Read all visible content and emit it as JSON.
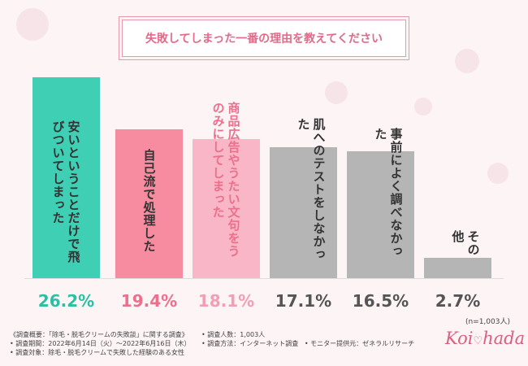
{
  "chart_data": {
    "type": "bar",
    "title": "失敗してしまった一番の理由を教えてください",
    "categories": [
      "安いということだけで飛びついてしまった",
      "自己流で処理した",
      "商品広告やうたい文句をうのみにしてしまった",
      "肌へのテストをしなかった",
      "事前によく調べなかった",
      "その他"
    ],
    "values": [
      26.2,
      19.4,
      18.1,
      17.1,
      16.5,
      2.7
    ],
    "value_labels": [
      "26.2%",
      "19.4%",
      "18.1%",
      "17.1%",
      "16.5%",
      "2.7%"
    ],
    "colors": [
      "#3ecfb4",
      "#f78ba0",
      "#f9b6c6",
      "#b5b5b5",
      "#b5b5b5",
      "#b5b5b5"
    ],
    "label_colors": [
      "#2bbfa4",
      "#ec6f8c",
      "#f29fb4",
      "#555555",
      "#555555",
      "#555555"
    ],
    "note": "(n=1,003人)"
  },
  "footer": {
    "heading": "《調査概要：「除毛・脱毛クリームの失敗談」に関する調査》",
    "period": "• 調査期間：2022年6月14日（火）～2022年6月16日（木）",
    "target": "• 調査対象：除毛・脱毛クリームで失敗した経験のある女性",
    "count": "• 調査人数：1,003人",
    "method": "• 調査方法：インターネット調査",
    "provider": "• モニター提供元：ゼネラルリサーチ"
  },
  "logo": {
    "left": "Koi",
    "right": "hada"
  }
}
